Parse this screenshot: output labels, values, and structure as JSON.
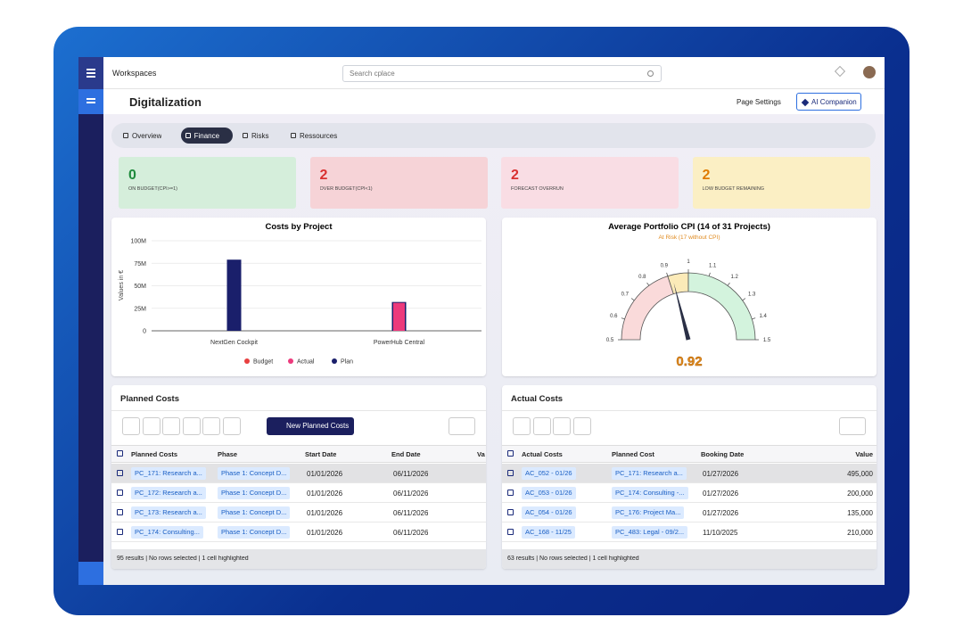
{
  "topbar": {
    "workspace": "Workspaces",
    "search_placeholder": "Search cplace"
  },
  "header": {
    "title": "Digitalization",
    "page_settings": "Page Settings",
    "ai_button": "AI Companion"
  },
  "tabs": [
    {
      "label": "Overview",
      "active": false
    },
    {
      "label": "Finance",
      "active": true
    },
    {
      "label": "Risks",
      "active": false
    },
    {
      "label": "Ressources",
      "active": false
    }
  ],
  "kpis": [
    {
      "value": "0",
      "label": "ON BUDGET(CPI>=1)",
      "color": "#1e8a3c",
      "background": "#d5eedb"
    },
    {
      "value": "2",
      "label": "OVER BUDGET(CPI<1)",
      "color": "#d93030",
      "background": "#f6d3d7"
    },
    {
      "value": "2",
      "label": "FORECAST OVERRUN",
      "color": "#d93030",
      "background": "#f9dde4"
    },
    {
      "value": "2",
      "label": "LOW BUDGET REMAINING",
      "color": "#e07b00",
      "background": "#fbefc4"
    }
  ],
  "cost_chart": {
    "type": "bar",
    "title": "Costs by Project",
    "y_label": "Values in €",
    "categories": [
      "NextGen Cockpit",
      "PowerHub Central"
    ],
    "series": [
      {
        "name": "Budget",
        "color": "#e84040",
        "values": [
          null,
          null
        ]
      },
      {
        "name": "Plan",
        "color": "#1a1f6b",
        "values": [
          79000000,
          32000000
        ]
      },
      {
        "name": "Actual",
        "color": "#ec3a7c",
        "values": [
          null,
          31000000
        ]
      }
    ],
    "legend_order": [
      "Budget",
      "Actual",
      "Plan"
    ],
    "ylim": [
      0,
      100000000
    ],
    "yticks": [
      {
        "value": 0,
        "label": "0"
      },
      {
        "value": 25000000,
        "label": "25M"
      },
      {
        "value": 50000000,
        "label": "50M"
      },
      {
        "value": 75000000,
        "label": "75M"
      },
      {
        "value": 100000000,
        "label": "100M"
      }
    ],
    "grid": true
  },
  "cpi_gauge": {
    "type": "gauge",
    "title": "Average Portfolio CPI (14 of 31 Projects)",
    "subtitle": "At Risk (17 without CPI)",
    "value": 0.92,
    "value_color": "#e08a1e",
    "range": [
      0.5,
      1.5
    ],
    "ticks": [
      0.5,
      0.6,
      0.7,
      0.8,
      0.9,
      1,
      1.1,
      1.2,
      1.3,
      1.4,
      1.5
    ],
    "bands": [
      {
        "from": 0.5,
        "to": 0.9,
        "color": "#fadada"
      },
      {
        "from": 0.9,
        "to": 1,
        "color": "#fbeab8"
      },
      {
        "from": 1,
        "to": 1.5,
        "color": "#d3f3dd"
      }
    ]
  },
  "planned_costs": {
    "title": "Planned Costs",
    "button": "New Planned Costs",
    "columns": [
      "Planned Costs",
      "Phase",
      "Start Date",
      "End Date",
      "Va"
    ],
    "rows": [
      [
        "PC_171: Research a...",
        "Phase 1: Concept D...",
        "01/01/2026",
        "06/11/2026"
      ],
      [
        "PC_172: Research a...",
        "Phase 1: Concept D...",
        "01/01/2026",
        "06/11/2026"
      ],
      [
        "PC_173: Research a...",
        "Phase 1: Concept D...",
        "01/01/2026",
        "06/11/2026"
      ],
      [
        "PC_174: Consulting...",
        "Phase 1: Concept D...",
        "01/01/2026",
        "06/11/2026"
      ]
    ],
    "footer": "95 results | No rows selected | 1 cell highlighted"
  },
  "actual_costs": {
    "title": "Actual Costs",
    "columns": [
      "Actual Costs",
      "Planned Cost",
      "Booking Date",
      "Value"
    ],
    "rows": [
      [
        "AC_052 - 01/26",
        "PC_171: Research a...",
        "01/27/2026",
        "495,000"
      ],
      [
        "AC_053 - 01/26",
        "PC_174: Consulting -...",
        "01/27/2026",
        "200,000"
      ],
      [
        "AC_054 - 01/26",
        "PC_176: Project Ma...",
        "01/27/2026",
        "135,000"
      ],
      [
        "AC_168 - 11/25",
        "PC_483: Legal - 09/2...",
        "11/10/2025",
        "210,000"
      ]
    ],
    "footer": "63 results | No rows selected | 1 cell highlighted"
  }
}
